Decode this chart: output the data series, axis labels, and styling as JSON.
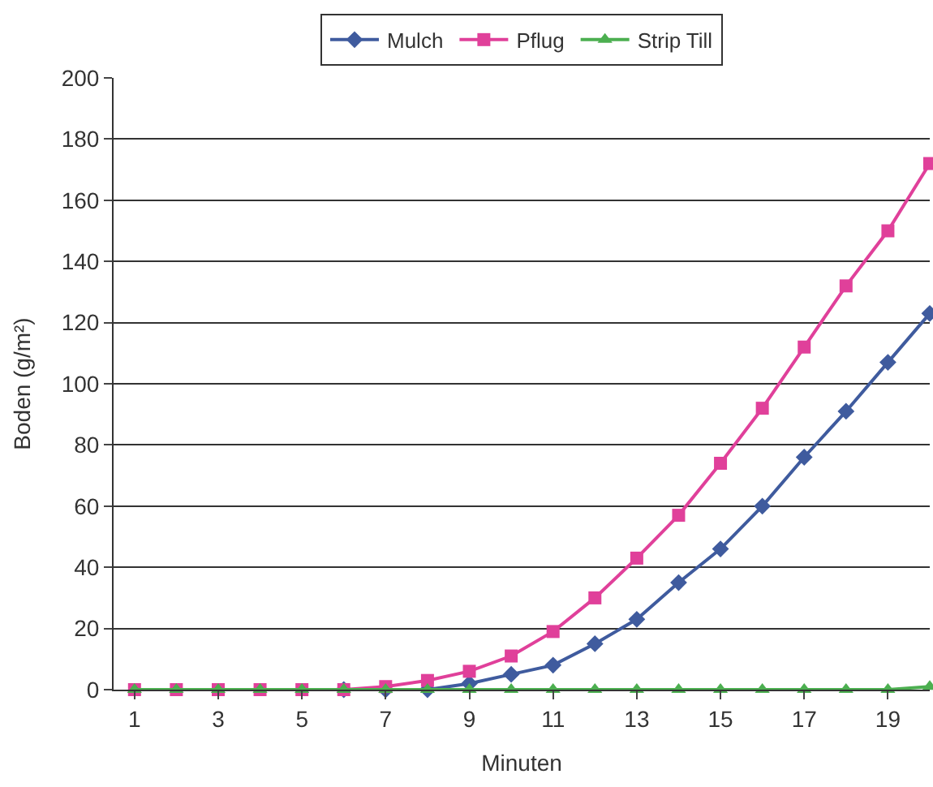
{
  "chart_data": {
    "type": "line",
    "xlabel": "Minuten",
    "ylabel": "Boden (g/m²)",
    "x": [
      1,
      2,
      3,
      4,
      5,
      6,
      7,
      8,
      9,
      10,
      11,
      12,
      13,
      14,
      15,
      16,
      17,
      18,
      19,
      20
    ],
    "series": [
      {
        "name": "Mulch",
        "color": "#3f5b9e",
        "marker": "diamond",
        "values": [
          null,
          null,
          null,
          null,
          null,
          0,
          0,
          0,
          2,
          5,
          8,
          15,
          23,
          35,
          46,
          60,
          76,
          91,
          107,
          123
        ]
      },
      {
        "name": "Pflug",
        "color": "#e0409a",
        "marker": "square",
        "values": [
          0,
          0,
          0,
          0,
          0,
          0,
          1,
          3,
          6,
          11,
          19,
          30,
          43,
          57,
          74,
          92,
          112,
          132,
          150,
          172
        ]
      },
      {
        "name": "Strip Till",
        "color": "#4caf50",
        "marker": "triangle",
        "values": [
          0,
          0,
          0,
          0,
          0,
          0,
          0,
          0,
          0,
          0,
          0,
          0,
          0,
          0,
          0,
          0,
          0,
          0,
          0,
          1
        ]
      }
    ],
    "xlim": [
      0.5,
      20
    ],
    "xticks": [
      1,
      3,
      5,
      7,
      9,
      11,
      13,
      15,
      17,
      19
    ],
    "ylim": [
      0,
      200
    ],
    "yticks": [
      0,
      20,
      40,
      60,
      80,
      100,
      120,
      140,
      160,
      180,
      200
    ],
    "grid": "y",
    "legend": "top",
    "line_style": "solid"
  }
}
